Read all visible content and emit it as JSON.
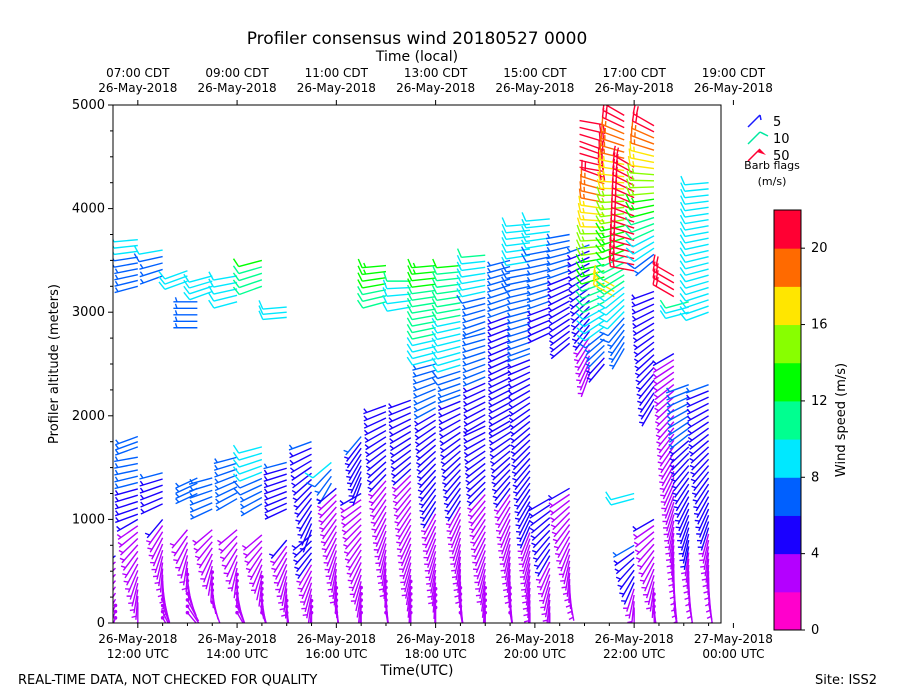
{
  "chart_data": {
    "type": "wind_barb_profile",
    "title": "Profiler consensus wind 20180527 0000",
    "top_axis_label": "Time (local)",
    "xlabel": "Time(UTC)",
    "ylabel": "Profiler altitude (meters)",
    "ylim": [
      0,
      5000
    ],
    "yticks": [
      0,
      1000,
      2000,
      3000,
      4000,
      5000
    ],
    "xlim_hours_utc": [
      11.5,
      23.75
    ],
    "bottom_ticks": [
      {
        "hour": 12,
        "line1": "26-May-2018",
        "line2": "12:00 UTC"
      },
      {
        "hour": 14,
        "line1": "26-May-2018",
        "line2": "14:00 UTC"
      },
      {
        "hour": 16,
        "line1": "26-May-2018",
        "line2": "16:00 UTC"
      },
      {
        "hour": 18,
        "line1": "26-May-2018",
        "line2": "18:00 UTC"
      },
      {
        "hour": 20,
        "line1": "26-May-2018",
        "line2": "20:00 UTC"
      },
      {
        "hour": 22,
        "line1": "26-May-2018",
        "line2": "22:00 UTC"
      },
      {
        "hour": 24,
        "line1": "27-May-2018",
        "line2": "00:00 UTC"
      }
    ],
    "top_ticks": [
      {
        "hour": 12,
        "line1": "07:00 CDT",
        "line2": "26-May-2018"
      },
      {
        "hour": 14,
        "line1": "09:00 CDT",
        "line2": "26-May-2018"
      },
      {
        "hour": 16,
        "line1": "11:00 CDT",
        "line2": "26-May-2018"
      },
      {
        "hour": 18,
        "line1": "13:00 CDT",
        "line2": "26-May-2018"
      },
      {
        "hour": 20,
        "line1": "15:00 CDT",
        "line2": "26-May-2018"
      },
      {
        "hour": 22,
        "line1": "17:00 CDT",
        "line2": "26-May-2018"
      },
      {
        "hour": 24,
        "line1": "19:00 CDT",
        "line2": "26-May-2018"
      }
    ],
    "barb_legend": {
      "entries": [
        {
          "label": "5",
          "color": "#1a1aff",
          "kind": "half"
        },
        {
          "label": "10",
          "color": "#00e8a0",
          "kind": "full"
        },
        {
          "label": "50",
          "color": "#ff0033",
          "kind": "flag"
        }
      ],
      "title_line1": "Barb flags",
      "title_line2": "(m/s)"
    },
    "colorbar": {
      "label": "Wind speed (m/s)",
      "min": 0,
      "max": 22,
      "step": 2,
      "ticks": [
        0,
        4,
        8,
        12,
        16,
        20
      ],
      "colors": [
        "#ff00cc",
        "#b400ff",
        "#1a00ff",
        "#0060ff",
        "#00e8ff",
        "#00ff90",
        "#00ff00",
        "#88ff00",
        "#ffe600",
        "#ff6a00",
        "#ff0033"
      ]
    },
    "profiles": [
      {
        "time": 11.55,
        "segments": [
          {
            "z0": 50,
            "z1": 650,
            "s0": 2,
            "s1": 4,
            "d0": 200,
            "d1": 230
          }
        ]
      },
      {
        "time": 12.0,
        "segments": [
          {
            "z0": 200,
            "z1": 1000,
            "s0": 3,
            "s1": 4,
            "d0": 180,
            "d1": 240
          },
          {
            "z0": 1050,
            "z1": 1600,
            "s0": 5,
            "s1": 7,
            "d0": 250,
            "d1": 260
          },
          {
            "z0": 1700,
            "z1": 1800,
            "s0": 7,
            "s1": 7,
            "d0": 250,
            "d1": 250
          },
          {
            "z0": 3250,
            "z1": 3700,
            "s0": 6,
            "s1": 9,
            "d0": 255,
            "d1": 265
          }
        ]
      },
      {
        "time": 12.5,
        "segments": [
          {
            "z0": 50,
            "z1": 1000,
            "s0": 2,
            "s1": 4,
            "d0": 150,
            "d1": 220
          },
          {
            "z0": 1150,
            "z1": 1450,
            "s0": 5,
            "s1": 6,
            "d0": 245,
            "d1": 255
          },
          {
            "z0": 3350,
            "z1": 3600,
            "s0": 6,
            "s1": 8,
            "d0": 250,
            "d1": 260
          }
        ]
      },
      {
        "time": 13.0,
        "segments": [
          {
            "z0": 100,
            "z1": 900,
            "s0": 2,
            "s1": 3,
            "d0": 140,
            "d1": 220
          },
          {
            "z0": 3300,
            "z1": 3400,
            "s0": 8,
            "s1": 9,
            "d0": 250,
            "d1": 250
          }
        ]
      },
      {
        "time": 13.2,
        "segments": [
          {
            "z0": 2850,
            "z1": 3100,
            "s0": 6,
            "s1": 6,
            "d0": 270,
            "d1": 270
          },
          {
            "z0": 1250,
            "z1": 1400,
            "s0": 6,
            "s1": 6,
            "d0": 245,
            "d1": 245
          }
        ]
      },
      {
        "time": 13.5,
        "segments": [
          {
            "z0": 200,
            "z1": 900,
            "s0": 2,
            "s1": 3,
            "d0": 160,
            "d1": 230
          },
          {
            "z0": 1100,
            "z1": 1400,
            "s0": 6,
            "s1": 7,
            "d0": 245,
            "d1": 255
          },
          {
            "z0": 3200,
            "z1": 3350,
            "s0": 8,
            "s1": 9,
            "d0": 250,
            "d1": 255
          }
        ]
      },
      {
        "time": 14.0,
        "segments": [
          {
            "z0": 100,
            "z1": 900,
            "s0": 2,
            "s1": 3,
            "d0": 150,
            "d1": 230
          },
          {
            "z0": 1200,
            "z1": 1600,
            "s0": 6,
            "s1": 7,
            "d0": 240,
            "d1": 255
          },
          {
            "z0": 3100,
            "z1": 3350,
            "s0": 9,
            "s1": 9,
            "d0": 255,
            "d1": 260
          }
        ]
      },
      {
        "time": 14.5,
        "segments": [
          {
            "z0": 100,
            "z1": 850,
            "s0": 2,
            "s1": 3,
            "d0": 160,
            "d1": 230
          },
          {
            "z0": 1150,
            "z1": 1700,
            "s0": 7,
            "s1": 9,
            "d0": 240,
            "d1": 255
          },
          {
            "z0": 3250,
            "z1": 3500,
            "s0": 10,
            "s1": 12,
            "d0": 250,
            "d1": 255
          }
        ]
      },
      {
        "time": 15.0,
        "segments": [
          {
            "z0": 100,
            "z1": 800,
            "s0": 2,
            "s1": 4,
            "d0": 170,
            "d1": 220
          },
          {
            "z0": 1100,
            "z1": 1550,
            "s0": 5,
            "s1": 6,
            "d0": 245,
            "d1": 255
          },
          {
            "z0": 2950,
            "z1": 3050,
            "s0": 9,
            "s1": 9,
            "d0": 265,
            "d1": 265
          }
        ]
      },
      {
        "time": 15.5,
        "segments": [
          {
            "z0": 100,
            "z1": 850,
            "s0": 2,
            "s1": 5,
            "d0": 180,
            "d1": 230
          },
          {
            "z0": 900,
            "z1": 1750,
            "s0": 5,
            "s1": 6,
            "d0": 200,
            "d1": 250
          }
        ]
      },
      {
        "time": 15.9,
        "segments": [
          {
            "z0": 1350,
            "z1": 1550,
            "s0": 7,
            "s1": 8,
            "d0": 210,
            "d1": 230
          }
        ]
      },
      {
        "time": 16.0,
        "segments": [
          {
            "z0": 100,
            "z1": 1300,
            "s0": 2,
            "s1": 4,
            "d0": 170,
            "d1": 230
          }
        ]
      },
      {
        "time": 16.5,
        "segments": [
          {
            "z0": 100,
            "z1": 1250,
            "s0": 2,
            "s1": 4,
            "d0": 180,
            "d1": 240
          },
          {
            "z0": 1350,
            "z1": 1800,
            "s0": 5,
            "s1": 6,
            "d0": 200,
            "d1": 220
          }
        ]
      },
      {
        "time": 17.0,
        "segments": [
          {
            "z0": 100,
            "z1": 2100,
            "s0": 2,
            "s1": 5,
            "d0": 170,
            "d1": 250
          },
          {
            "z0": 3100,
            "z1": 3450,
            "s0": 11,
            "s1": 13,
            "d0": 255,
            "d1": 265
          }
        ]
      },
      {
        "time": 17.5,
        "segments": [
          {
            "z0": 100,
            "z1": 2150,
            "s0": 2,
            "s1": 5,
            "d0": 180,
            "d1": 250
          },
          {
            "z0": 3050,
            "z1": 3300,
            "s0": 9,
            "s1": 10,
            "d0": 260,
            "d1": 270
          }
        ]
      },
      {
        "time": 18.0,
        "segments": [
          {
            "z0": 150,
            "z1": 2500,
            "s0": 2,
            "s1": 7,
            "d0": 180,
            "d1": 255
          },
          {
            "z0": 2550,
            "z1": 3450,
            "s0": 9,
            "s1": 13,
            "d0": 255,
            "d1": 265
          }
        ]
      },
      {
        "time": 18.5,
        "segments": [
          {
            "z0": 100,
            "z1": 2200,
            "s0": 2,
            "s1": 6,
            "d0": 170,
            "d1": 250
          },
          {
            "z0": 2250,
            "z1": 3450,
            "s0": 7,
            "s1": 12,
            "d0": 250,
            "d1": 265
          }
        ]
      },
      {
        "time": 19.0,
        "segments": [
          {
            "z0": 100,
            "z1": 1900,
            "s0": 2,
            "s1": 5,
            "d0": 180,
            "d1": 245
          },
          {
            "z0": 1950,
            "z1": 2800,
            "s0": 5,
            "s1": 7,
            "d0": 240,
            "d1": 255
          },
          {
            "z0": 2850,
            "z1": 3550,
            "s0": 6,
            "s1": 10,
            "d0": 250,
            "d1": 265
          }
        ]
      },
      {
        "time": 19.5,
        "segments": [
          {
            "z0": 100,
            "z1": 1900,
            "s0": 2,
            "s1": 5,
            "d0": 170,
            "d1": 240
          },
          {
            "z0": 1950,
            "z1": 3500,
            "s0": 4,
            "s1": 7,
            "d0": 240,
            "d1": 255
          }
        ]
      },
      {
        "time": 19.9,
        "segments": [
          {
            "z0": 100,
            "z1": 2600,
            "s0": 3,
            "s1": 6,
            "d0": 180,
            "d1": 250
          },
          {
            "z0": 2650,
            "z1": 3850,
            "s0": 6,
            "s1": 9,
            "d0": 250,
            "d1": 265
          }
        ]
      },
      {
        "time": 20.3,
        "segments": [
          {
            "z0": 100,
            "z1": 1200,
            "s0": 3,
            "s1": 5,
            "d0": 180,
            "d1": 240
          },
          {
            "z0": 2800,
            "z1": 3900,
            "s0": 5,
            "s1": 9,
            "d0": 245,
            "d1": 265
          }
        ]
      },
      {
        "time": 20.7,
        "segments": [
          {
            "z0": 250,
            "z1": 1300,
            "s0": 3,
            "s1": 4,
            "d0": 170,
            "d1": 240
          },
          {
            "z0": 2700,
            "z1": 3750,
            "s0": 4,
            "s1": 7,
            "d0": 230,
            "d1": 260
          }
        ]
      },
      {
        "time": 20.9,
        "segments": [
          {
            "z0": 4650,
            "z1": 4850,
            "s0": 21,
            "s1": 21,
            "d0": 110,
            "d1": 100
          },
          {
            "z0": 4400,
            "z1": 4600,
            "s0": 21,
            "s1": 21,
            "d0": 100,
            "d1": 110
          }
        ]
      },
      {
        "time": 21.1,
        "segments": [
          {
            "z0": 2400,
            "z1": 3650,
            "s0": 3,
            "s1": 6,
            "d0": 200,
            "d1": 250
          }
        ]
      },
      {
        "time": 21.4,
        "segments": [
          {
            "z0": 2500,
            "z1": 4300,
            "s0": 5,
            "s1": 20,
            "d0": 220,
            "d1": 290
          }
        ]
      },
      {
        "time": 21.6,
        "segments": [
          {
            "z0": 3150,
            "z1": 3250,
            "s0": 17,
            "s1": 17,
            "d0": 300,
            "d1": 300
          }
        ]
      },
      {
        "time": 21.8,
        "segments": [
          {
            "z0": 2650,
            "z1": 4900,
            "s0": 6,
            "s1": 21,
            "d0": 210,
            "d1": 300
          }
        ]
      },
      {
        "time": 22.0,
        "segments": [
          {
            "z0": 150,
            "z1": 750,
            "s0": 3,
            "s1": 6,
            "d0": 180,
            "d1": 240
          },
          {
            "z0": 1200,
            "z1": 1250,
            "s0": 9,
            "s1": 9,
            "d0": 255,
            "d1": 255
          },
          {
            "z0": 3400,
            "z1": 4400,
            "s0": 20,
            "s1": 21,
            "d0": 280,
            "d1": 300
          }
        ]
      },
      {
        "time": 22.4,
        "segments": [
          {
            "z0": 100,
            "z1": 1000,
            "s0": 2,
            "s1": 4,
            "d0": 170,
            "d1": 240
          },
          {
            "z0": 2100,
            "z1": 3200,
            "s0": 4,
            "s1": 5,
            "d0": 210,
            "d1": 250
          },
          {
            "z0": 3500,
            "z1": 4800,
            "s0": 7,
            "s1": 21,
            "d0": 230,
            "d1": 300
          }
        ]
      },
      {
        "time": 22.8,
        "segments": [
          {
            "z0": 150,
            "z1": 2600,
            "s0": 3,
            "s1": 4,
            "d0": 170,
            "d1": 240
          },
          {
            "z0": 3150,
            "z1": 3350,
            "s0": 21,
            "s1": 21,
            "d0": 300,
            "d1": 300
          }
        ]
      },
      {
        "time": 23.1,
        "segments": [
          {
            "z0": 200,
            "z1": 2300,
            "s0": 3,
            "s1": 7,
            "d0": 170,
            "d1": 250
          },
          {
            "z0": 3000,
            "z1": 3100,
            "s0": 9,
            "s1": 10,
            "d0": 255,
            "d1": 255
          }
        ]
      },
      {
        "time": 23.5,
        "segments": [
          {
            "z0": 200,
            "z1": 2300,
            "s0": 3,
            "s1": 6,
            "d0": 170,
            "d1": 250
          },
          {
            "z0": 3000,
            "z1": 4250,
            "s0": 8,
            "s1": 9,
            "d0": 250,
            "d1": 265
          }
        ]
      }
    ]
  },
  "footer": {
    "disclaimer": "REAL-TIME DATA, NOT CHECKED FOR QUALITY",
    "site": "Site: ISS2"
  }
}
